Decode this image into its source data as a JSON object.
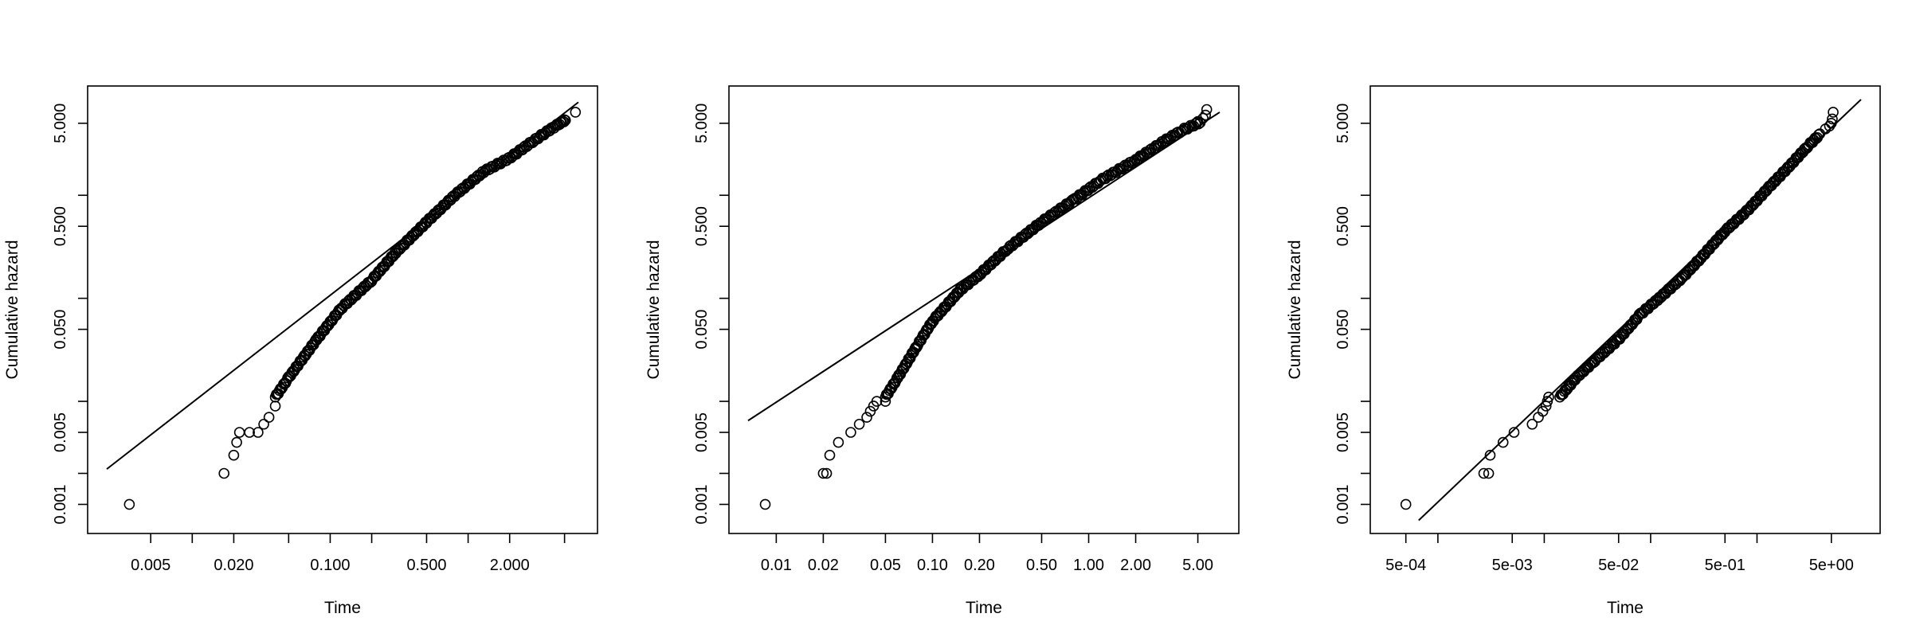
{
  "chart_data": [
    {
      "type": "scatter",
      "xlabel": "Time",
      "ylabel": "Cumulative hazard",
      "xscale": "log",
      "yscale": "log",
      "xlim": [
        0.0024,
        6.3
      ],
      "ylim": [
        0.0008,
        7.5
      ],
      "xticks": [
        0.005,
        0.01,
        0.02,
        0.05,
        0.1,
        0.2,
        0.5,
        1,
        2,
        5
      ],
      "xtick_labels": [
        "0.005",
        "",
        "0.020",
        "",
        "0.100",
        "",
        "0.500",
        "",
        "2.000",
        ""
      ],
      "yticks": [
        0.001,
        0.002,
        0.005,
        0.01,
        0.05,
        0.1,
        0.5,
        1,
        5
      ],
      "ytick_labels": [
        "0.001",
        "",
        "0.005",
        "",
        "0.050",
        "",
        "0.500",
        "",
        "5.000"
      ],
      "reference_line": {
        "x": [
          0.0024,
          6.3
        ],
        "y": [
          0.0022,
          8.0
        ]
      },
      "points": {
        "x": [
          0.0035,
          0.017,
          0.02,
          0.021,
          0.022,
          0.026,
          0.03,
          0.033,
          0.036,
          0.04
        ],
        "y": [
          0.001,
          0.002,
          0.003,
          0.004,
          0.005,
          0.005,
          0.005,
          0.006,
          0.007,
          0.009
        ]
      },
      "curve": {
        "x": [
          0.04,
          0.05,
          0.08,
          0.12,
          0.2,
          0.3,
          0.5,
          0.8,
          1.3,
          2,
          3,
          4.2,
          5.2
        ],
        "y": [
          0.011,
          0.017,
          0.04,
          0.08,
          0.15,
          0.28,
          0.55,
          1.0,
          1.7,
          2.3,
          3.4,
          4.6,
          5.5
        ]
      },
      "end_points": {
        "x": [
          4.0,
          4.4,
          4.7,
          5.0,
          6.0
        ],
        "y": [
          4.5,
          4.8,
          5.1,
          5.4,
          6.4
        ]
      }
    },
    {
      "type": "scatter",
      "xlabel": "Time",
      "ylabel": "Cumulative hazard",
      "xscale": "log",
      "yscale": "log",
      "xlim": [
        0.0066,
        6.9
      ],
      "ylim": [
        0.0008,
        7.5
      ],
      "xticks": [
        0.01,
        0.02,
        0.05,
        0.1,
        0.2,
        0.5,
        1,
        2,
        5
      ],
      "xtick_labels": [
        "0.01",
        "0.02",
        "0.05",
        "0.10",
        "0.20",
        "0.50",
        "1.00",
        "2.00",
        "5.00"
      ],
      "yticks": [
        0.001,
        0.002,
        0.005,
        0.01,
        0.05,
        0.1,
        0.5,
        1,
        5
      ],
      "ytick_labels": [
        "0.001",
        "",
        "0.005",
        "",
        "0.050",
        "",
        "0.500",
        "",
        "5.000"
      ],
      "reference_line": {
        "x": [
          0.0066,
          6.9
        ],
        "y": [
          0.0065,
          6.4
        ]
      },
      "points": {
        "x": [
          0.0085,
          0.02,
          0.021,
          0.022,
          0.025,
          0.03,
          0.034,
          0.038,
          0.04,
          0.042,
          0.044,
          0.05
        ],
        "y": [
          0.001,
          0.002,
          0.002,
          0.003,
          0.004,
          0.005,
          0.006,
          0.007,
          0.008,
          0.009,
          0.01,
          0.01
        ]
      },
      "curve": {
        "x": [
          0.05,
          0.06,
          0.08,
          0.1,
          0.15,
          0.2,
          0.3,
          0.5,
          0.8,
          1.2,
          2,
          3,
          4,
          5.3
        ],
        "y": [
          0.011,
          0.017,
          0.035,
          0.06,
          0.12,
          0.17,
          0.3,
          0.55,
          0.9,
          1.4,
          2.2,
          3.3,
          4.3,
          5.2
        ]
      },
      "end_points": {
        "x": [
          5.0,
          5.4,
          5.6,
          5.7
        ],
        "y": [
          5.2,
          5.6,
          6.0,
          6.8
        ]
      }
    },
    {
      "type": "scatter",
      "xlabel": "Time",
      "ylabel": "Cumulative hazard",
      "xscale": "log",
      "yscale": "log",
      "xlim": [
        0.00035,
        9.5
      ],
      "ylim": [
        0.0008,
        7.5
      ],
      "xticks": [
        0.0005,
        0.001,
        0.005,
        0.01,
        0.05,
        0.1,
        0.5,
        1,
        5
      ],
      "xtick_labels": [
        "5e-04",
        "",
        "5e-03",
        "",
        "5e-02",
        "",
        "5e-01",
        "",
        "5e+00"
      ],
      "yticks": [
        0.001,
        0.002,
        0.005,
        0.01,
        0.05,
        0.1,
        0.5,
        1,
        5
      ],
      "ytick_labels": [
        "0.001",
        "",
        "0.005",
        "",
        "0.050",
        "",
        "0.500",
        "",
        "5.000"
      ],
      "reference_line": {
        "x": [
          0.00066,
          9.5
        ],
        "y": [
          0.0007,
          8.5
        ]
      },
      "points": {
        "x": [
          0.0005,
          0.0027,
          0.003,
          0.0031,
          0.0041,
          0.0052,
          0.0077,
          0.0088,
          0.0097,
          0.0104,
          0.0107,
          0.011
        ],
        "y": [
          0.001,
          0.002,
          0.002,
          0.003,
          0.004,
          0.005,
          0.006,
          0.007,
          0.008,
          0.009,
          0.01,
          0.011
        ]
      },
      "curve": {
        "x": [
          0.014,
          0.02,
          0.03,
          0.05,
          0.08,
          0.12,
          0.2,
          0.3,
          0.5,
          0.8,
          1.3,
          2,
          3,
          4
        ],
        "y": [
          0.011,
          0.017,
          0.025,
          0.04,
          0.07,
          0.1,
          0.16,
          0.25,
          0.45,
          0.7,
          1.2,
          1.9,
          3.0,
          4.0
        ]
      },
      "end_points": {
        "x": [
          4.4,
          4.8,
          5.0,
          5.1,
          5.2
        ],
        "y": [
          4.4,
          4.7,
          5.0,
          5.5,
          6.4
        ]
      }
    }
  ]
}
